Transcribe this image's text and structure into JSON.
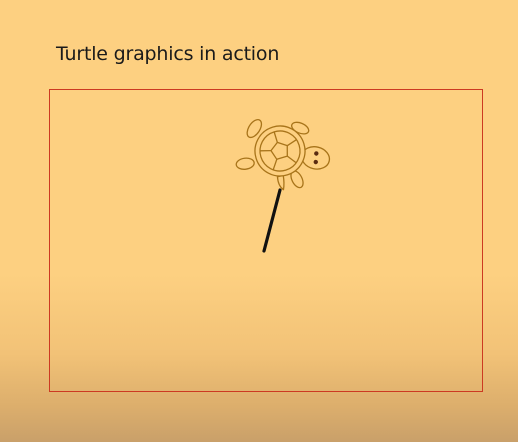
{
  "slide": {
    "title": "Turtle graphics in action"
  },
  "canvas": {
    "frame_color": "#cc3a22",
    "pen_color": "#111111",
    "turtle_icon": "turtle-icon"
  },
  "colors": {
    "background": "#fdd081",
    "turtle_outline": "#a8741a",
    "turtle_fill": "#fdd081"
  }
}
